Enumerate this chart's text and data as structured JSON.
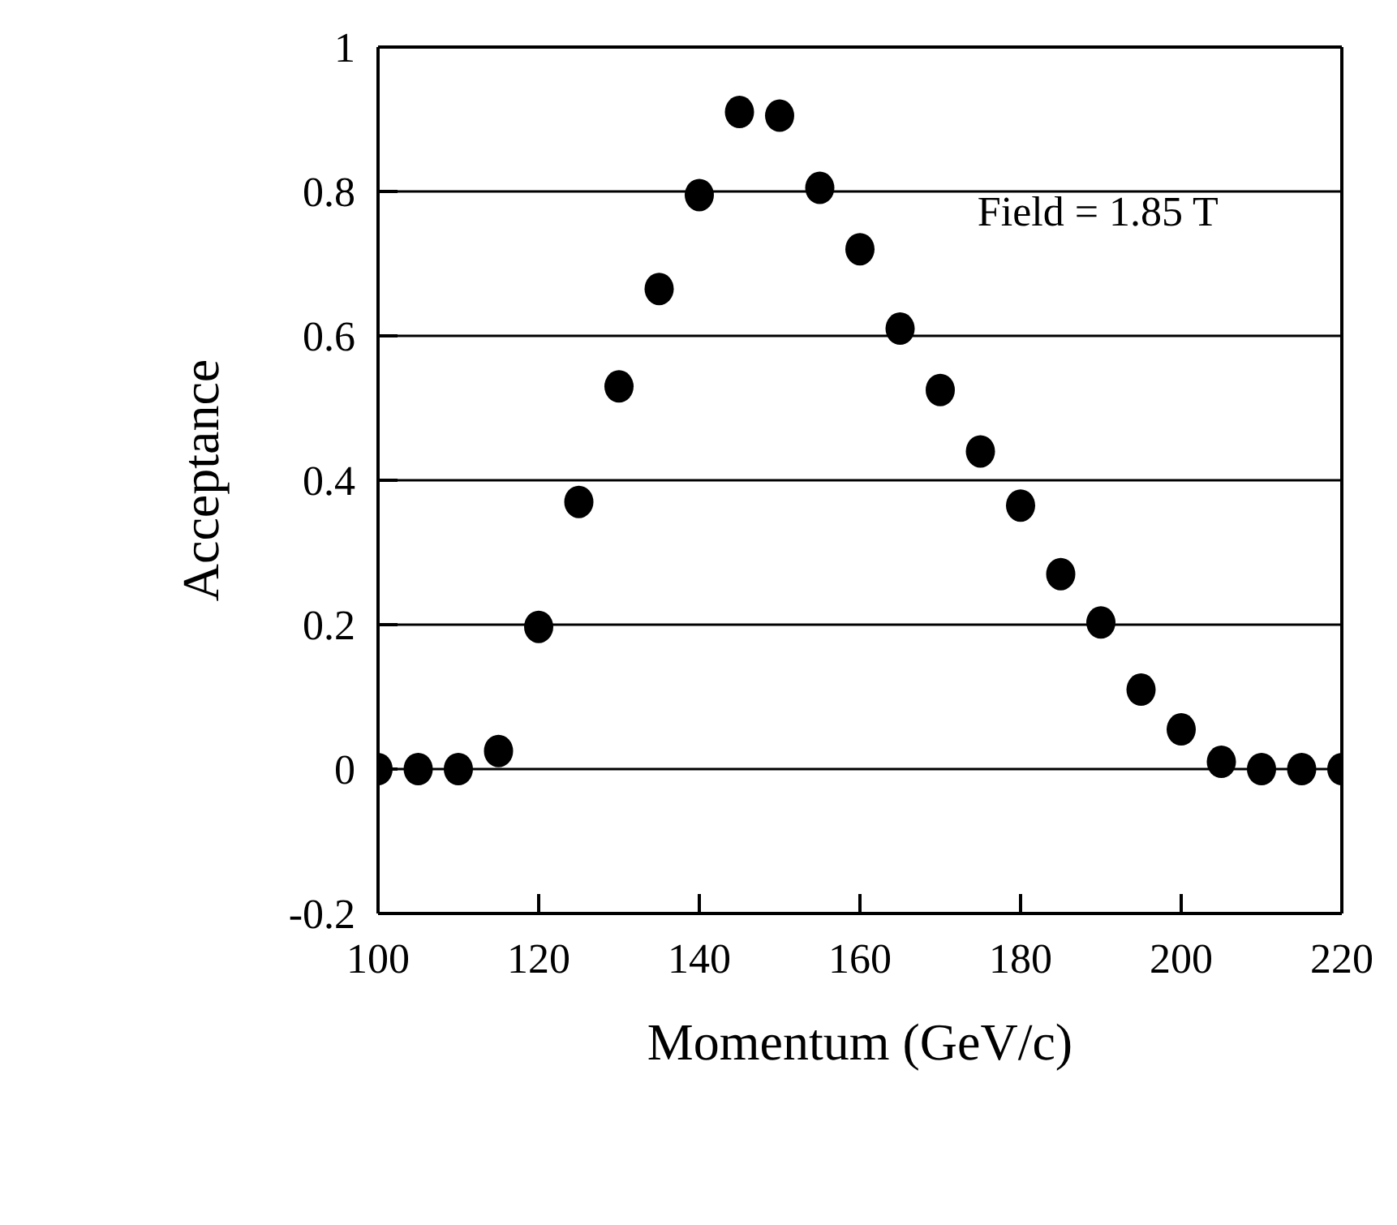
{
  "chart_data": {
    "type": "scatter",
    "xlabel": "Momentum (GeV/c)",
    "ylabel": "Acceptance",
    "annotations": [
      "Field = 1.85 T"
    ],
    "x": [
      100,
      105,
      110,
      115,
      120,
      125,
      130,
      135,
      140,
      145,
      150,
      155,
      160,
      165,
      170,
      175,
      180,
      185,
      190,
      195,
      200,
      205,
      210,
      215,
      220
    ],
    "series": [
      {
        "color": "#000000",
        "values": [
          0,
          0,
          0,
          0.025,
          0.197,
          0.37,
          0.53,
          0.665,
          0.795,
          0.91,
          0.905,
          0.805,
          0.72,
          0.61,
          0.525,
          0.44,
          0.365,
          0.27,
          0.203,
          0.11,
          0.055,
          0.01,
          0,
          0,
          0
        ]
      }
    ],
    "xlim": [
      100,
      220
    ],
    "xticks": [
      100,
      120,
      140,
      160,
      180,
      200,
      220
    ],
    "ylim": [
      -0.2,
      1
    ],
    "yticks": [
      -0.2,
      0,
      0.2,
      0.4,
      0.6,
      0.8,
      1
    ],
    "grid": "y",
    "marker": "circle"
  }
}
